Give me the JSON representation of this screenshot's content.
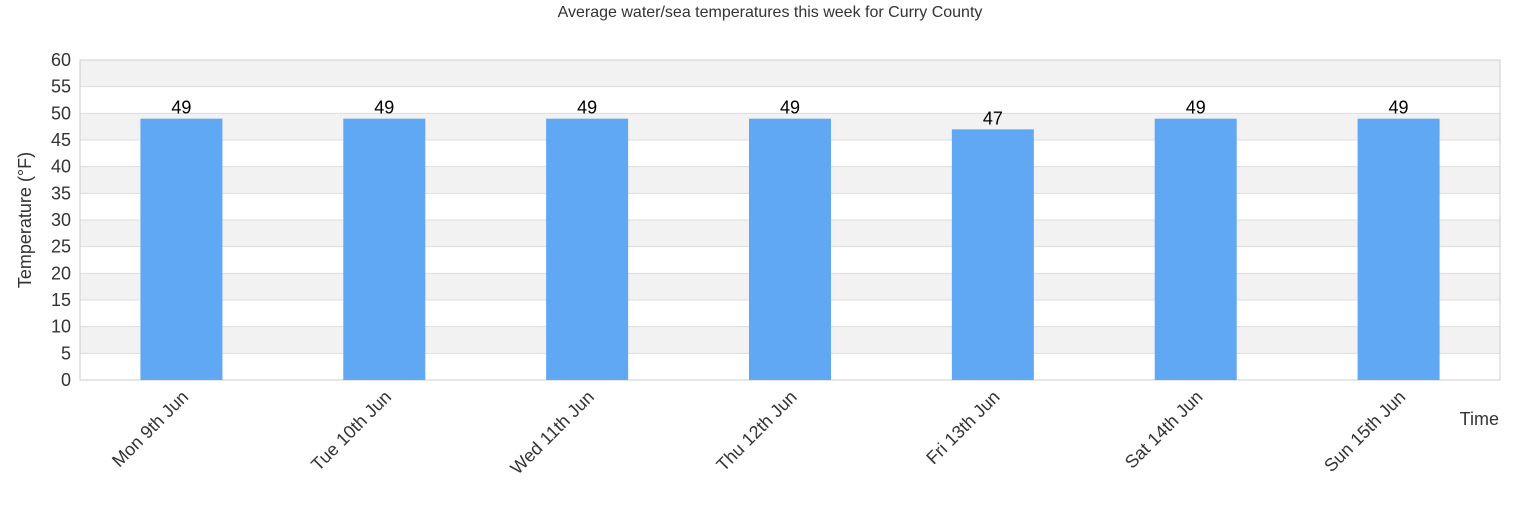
{
  "chart_data": {
    "type": "bar",
    "title": "Average water/sea temperatures this week for Curry County",
    "xlabel": "Time",
    "ylabel": "Temperature (°F)",
    "categories": [
      "Mon 9th Jun",
      "Tue 10th Jun",
      "Wed 11th Jun",
      "Thu 12th Jun",
      "Fri 13th Jun",
      "Sat 14th Jun",
      "Sun 15th Jun"
    ],
    "values": [
      49,
      49,
      49,
      49,
      47,
      49,
      49
    ],
    "ylim": [
      0,
      60
    ],
    "yticks": [
      0,
      5,
      10,
      15,
      20,
      25,
      30,
      35,
      40,
      45,
      50,
      55,
      60
    ],
    "grid": true,
    "bar_color": "#61a8f4",
    "band_color": "#f2f2f2",
    "grid_color": "#dddddd"
  }
}
